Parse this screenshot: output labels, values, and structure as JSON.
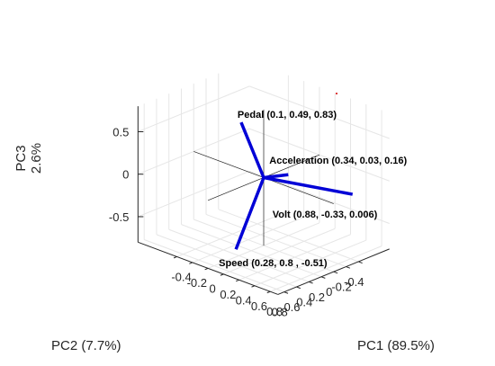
{
  "chart_data": {
    "type": "biplot-3d",
    "axes": {
      "x": {
        "label": "PC1 (89.5%)",
        "ticks": [
          "-0.4",
          "-0.2",
          "0",
          "0.2",
          "0.4",
          "0.6",
          "0.8"
        ]
      },
      "y": {
        "label": "PC2 (7.7%)",
        "ticks": [
          "-0.4",
          "-0.2",
          "0",
          "0.2",
          "0.4",
          "0.6",
          "0.8"
        ]
      },
      "z": {
        "label_line1": "PC3",
        "label_line2": "2.6%",
        "ticks": [
          "0.5",
          "0",
          "-0.5"
        ]
      }
    },
    "grid": true,
    "vector_color": "#0000d6",
    "vectors": [
      {
        "name": "Pedal",
        "x": 0.1,
        "y": 0.49,
        "z": 0.83,
        "label": "Pedal (0.1, 0.49, 0.83)"
      },
      {
        "name": "Acceleration",
        "x": 0.34,
        "y": 0.03,
        "z": 0.16,
        "label": "Acceleration (0.34, 0.03, 0.16)"
      },
      {
        "name": "Volt",
        "x": 0.88,
        "y": -0.33,
        "z": 0.006,
        "label": "Volt (0.88, -0.33, 0.006)"
      },
      {
        "name": "Speed",
        "x": 0.28,
        "y": 0.8,
        "z": -0.51,
        "label": "Speed (0.28, 0.8 , -0.51)"
      }
    ]
  }
}
